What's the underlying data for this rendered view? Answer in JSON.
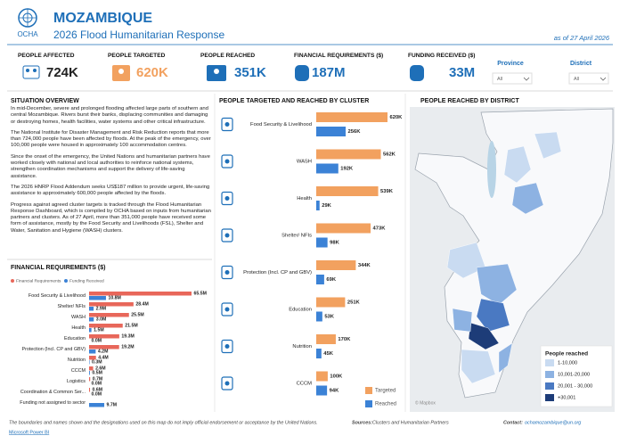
{
  "header": {
    "org": "OCHA",
    "title": "MOZAMBIQUE",
    "subtitle": "2026 Flood Humanitarian Response",
    "date": "as of 27 April 2026"
  },
  "kpis": [
    {
      "label": "PEOPLE AFFECTED",
      "value": "724K"
    },
    {
      "label": "PEOPLE TARGETED",
      "value": "620K"
    },
    {
      "label": "PEOPLE REACHED",
      "value": "351K"
    },
    {
      "label": "FINANCIAL REQUIREMENTS ($)",
      "value": "187M"
    },
    {
      "label": "FUNDING RECEIVED ($)",
      "value": "33M"
    }
  ],
  "filters": [
    {
      "label": "Province",
      "value": "All"
    },
    {
      "label": "District",
      "value": "All"
    }
  ],
  "situation_overview": {
    "title": "SITUATION OVERVIEW",
    "paragraphs": [
      "In mid-December, severe and prolonged flooding affected large parts of southern and central Mozambique. Rivers burst their banks, displacing communities and damaging or destroying homes, health facilities, water systems and other critical infrastructure.",
      "The National Institute for Disaster Management and Risk Reduction reports that more than 724,000 people have been affected by floods. At the peak of the emergency, over 100,000 people were housed in approximately 100 accommodation centres.",
      "Since the onset of the emergency, the United Nations and humanitarian partners have worked closely with national and local authorities to reinforce national systems, strengthen coordination mechanisms and support the delivery of life-saving assistance.",
      "The 2026 HNRP Flood Addendum seeks US$187 million to provide urgent, life-saving assistance to approximately 600,000 people affected by the floods.",
      "Progress against agreed cluster targets is tracked through the Flood Humanitarian Response Dashboard, which is compiled by OCHA based on inputs from humanitarian partners and clusters. As of 27 April, more than 351,000 people have received some form of assistance, mostly by the Food Security and Livelihoods (FSL), Shelter and Water, Sanitation and Hygiene (WASH) clusters."
    ]
  },
  "chart_data": [
    {
      "type": "bar",
      "orientation": "horizontal",
      "title": "PEOPLE TARGETED AND REACHED BY CLUSTER",
      "categories": [
        "Food Security & Livelihood",
        "WASH",
        "Health",
        "Shelter/ NFIs",
        "Protection (Incl. CP and GBV)",
        "Education",
        "Nutrition",
        "CCCM"
      ],
      "series": [
        {
          "name": "Targeted",
          "color": "#f2a15f",
          "values": [
            620,
            562,
            539,
            473,
            344,
            251,
            170,
            100
          ],
          "value_labels": [
            "620K",
            "562K",
            "539K",
            "473K",
            "344K",
            "251K",
            "170K",
            "100K"
          ]
        },
        {
          "name": "Reached",
          "color": "#3b82d6",
          "values": [
            256,
            192,
            29,
            98,
            69,
            53,
            45,
            94
          ],
          "value_labels": [
            "256K",
            "192K",
            "29K",
            "98K",
            "69K",
            "53K",
            "45K",
            "94K"
          ]
        }
      ]
    },
    {
      "type": "bar",
      "orientation": "horizontal",
      "title": "FINANCIAL REQUIREMENTS ($)",
      "categories": [
        "Food Security & Livelihood",
        "Shelter/ NFIs",
        "WASH",
        "Health",
        "Education",
        "Protection (Incl. CP and GBV)",
        "Nutrition",
        "CCCM",
        "Logistics",
        "Coordination & Common Ser...",
        "Funding not assigned to sector"
      ],
      "series": [
        {
          "name": "Financial Requirements",
          "color": "#e8675a",
          "values": [
            65.5,
            28.4,
            25.5,
            21.5,
            19.3,
            19.2,
            4.4,
            2.6,
            0.7,
            0.6,
            null
          ],
          "value_labels": [
            "65.5M",
            "28.4M",
            "25.5M",
            "21.5M",
            "19.3M",
            "19.2M",
            "4.4M",
            "2.6M",
            "0.7M",
            "0.6M",
            null
          ]
        },
        {
          "name": "Funding Received",
          "color": "#3b82d6",
          "values": [
            10.8,
            2.9,
            3.0,
            1.5,
            0.0,
            4.2,
            0.3,
            0.5,
            0.0,
            0.0,
            9.7
          ],
          "value_labels": [
            "10.8M",
            "2.9M",
            "3.0M",
            "1.5M",
            "0.0M",
            "4.2M",
            "0.3M",
            "0.5M",
            "0.0M",
            "0.0M",
            "9.7M"
          ]
        }
      ]
    }
  ],
  "map": {
    "title": "PEOPLE REACHED BY DISTRICT",
    "legend_title": "People reached",
    "legend": [
      {
        "label": "1-10,000",
        "color": "#c9dbf1"
      },
      {
        "label": "10,001-20,000",
        "color": "#8db2e2"
      },
      {
        "label": "20,001 - 30,000",
        "color": "#4a79c2"
      },
      {
        "label": "+30,001",
        "color": "#1d3c78"
      }
    ],
    "attribution": "© Mapbox"
  },
  "footer": {
    "disclaimer": "The boundaries and names shown and the designations used on this map do not imply official endorsement or acceptance by the United Nations.",
    "sources_label": "Sources:",
    "sources": "Clusters and Humanitarian Partners",
    "contact_label": "Contact:",
    "contact": "ochamozambique@un.org",
    "powered_by": "Microsoft Power BI"
  }
}
